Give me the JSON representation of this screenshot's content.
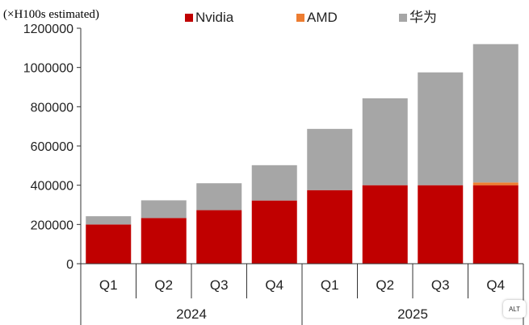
{
  "chart_data": {
    "type": "bar",
    "stacked": true,
    "unit_label": "(×H100s estimated)",
    "categories": [
      "Q1",
      "Q2",
      "Q3",
      "Q4",
      "Q1",
      "Q2",
      "Q3",
      "Q4"
    ],
    "groups": [
      {
        "label": "2024",
        "span": [
          0,
          3
        ]
      },
      {
        "label": "2025",
        "span": [
          4,
          7
        ]
      }
    ],
    "series": [
      {
        "name": "Nvidia",
        "color": "#c00000",
        "values": [
          200000,
          233000,
          273000,
          322000,
          375000,
          400000,
          400000,
          400000
        ]
      },
      {
        "name": "AMD",
        "color": "#ed7d31",
        "values": [
          0,
          0,
          0,
          0,
          0,
          0,
          0,
          14000
        ]
      },
      {
        "name": "华为",
        "color": "#a6a6a6",
        "values": [
          42000,
          90000,
          137000,
          180000,
          312000,
          443000,
          575000,
          705000
        ]
      }
    ],
    "ylim": [
      0,
      1200000
    ],
    "yticks": [
      "0",
      "200000",
      "400000",
      "600000",
      "800000",
      "1000000",
      "1200000"
    ],
    "grid": false,
    "legend_position": "top"
  },
  "badge": {
    "label": "ALT"
  }
}
